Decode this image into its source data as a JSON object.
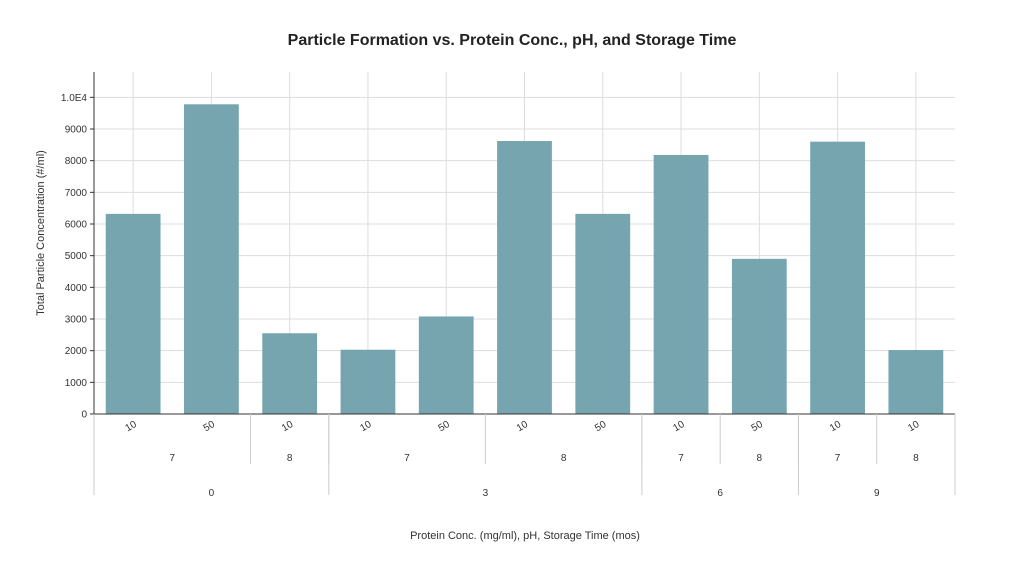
{
  "chart_data": {
    "type": "bar",
    "title": "Particle Formation vs. Protein Conc., pH, and Storage Time",
    "xlabel": "Protein Conc. (mg/ml), pH, Storage Time (mos)",
    "ylabel": "Total Particle Concentration (#/ml)",
    "ylim": [
      0,
      10800
    ],
    "yticks": [
      {
        "value": 0,
        "label": "0"
      },
      {
        "value": 1000,
        "label": "1000"
      },
      {
        "value": 2000,
        "label": "2000"
      },
      {
        "value": 3000,
        "label": "3000"
      },
      {
        "value": 4000,
        "label": "4000"
      },
      {
        "value": 5000,
        "label": "5000"
      },
      {
        "value": 6000,
        "label": "6000"
      },
      {
        "value": 7000,
        "label": "7000"
      },
      {
        "value": 8000,
        "label": "8000"
      },
      {
        "value": 9000,
        "label": "9000"
      },
      {
        "value": 10000,
        "label": "1.0E4"
      }
    ],
    "grid": true,
    "categories": [
      "10",
      "50",
      "10",
      "10",
      "50",
      "10",
      "50",
      "10",
      "50",
      "10",
      "10"
    ],
    "values": [
      6320,
      9780,
      2550,
      2030,
      3080,
      8620,
      6320,
      8180,
      4900,
      8600,
      2020
    ],
    "bar_color": "#76a5af",
    "group_levels": [
      [
        {
          "label": "7",
          "span": 2
        },
        {
          "label": "8",
          "span": 1
        },
        {
          "label": "7",
          "span": 2
        },
        {
          "label": "8",
          "span": 2
        },
        {
          "label": "7",
          "span": 1
        },
        {
          "label": "8",
          "span": 1
        },
        {
          "label": "7",
          "span": 1
        },
        {
          "label": "8",
          "span": 1
        }
      ],
      [
        {
          "label": "0",
          "span": 3
        },
        {
          "label": "3",
          "span": 4
        },
        {
          "label": "6",
          "span": 2
        },
        {
          "label": "9",
          "span": 2
        }
      ]
    ]
  }
}
